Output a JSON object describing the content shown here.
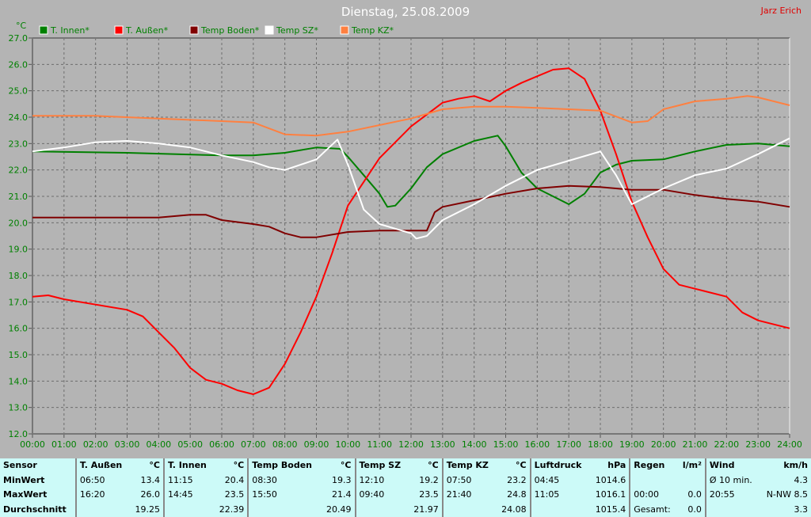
{
  "header": {
    "title": "Dienstag, 25.08.2009",
    "author": "Jarz Erich"
  },
  "chart_data": {
    "type": "line",
    "title": "Dienstag, 25.08.2009",
    "ylabel": "°C",
    "ylim": [
      12.0,
      27.0
    ],
    "yticks": [
      "12.0",
      "13.0",
      "14.0",
      "15.0",
      "16.0",
      "17.0",
      "18.0",
      "19.0",
      "20.0",
      "21.0",
      "22.0",
      "23.0",
      "24.0",
      "25.0",
      "26.0",
      "27.0"
    ],
    "xticks": [
      "00:00",
      "01:00",
      "02:00",
      "03:00",
      "04:00",
      "05:00",
      "06:00",
      "07:00",
      "08:00",
      "09:00",
      "10:00",
      "11:00",
      "12:00",
      "13:00",
      "14:00",
      "15:00",
      "16:00",
      "17:00",
      "18:00",
      "19:00",
      "20:00",
      "21:00",
      "22:00",
      "23:00",
      "24:00"
    ],
    "grid": true,
    "legend_position": "top",
    "series": [
      {
        "name": "T. Innen*",
        "color": "#008000",
        "points": [
          [
            "00:00",
            22.7
          ],
          [
            "03:00",
            22.65
          ],
          [
            "06:00",
            22.55
          ],
          [
            "07:00",
            22.55
          ],
          [
            "08:00",
            22.65
          ],
          [
            "09:00",
            22.85
          ],
          [
            "09:45",
            22.8
          ],
          [
            "10:00",
            22.5
          ],
          [
            "10:30",
            21.8
          ],
          [
            "11:00",
            21.1
          ],
          [
            "11:15",
            20.6
          ],
          [
            "11:30",
            20.65
          ],
          [
            "12:00",
            21.3
          ],
          [
            "12:30",
            22.1
          ],
          [
            "13:00",
            22.6
          ],
          [
            "14:00",
            23.1
          ],
          [
            "14:45",
            23.3
          ],
          [
            "15:00",
            22.9
          ],
          [
            "15:30",
            21.9
          ],
          [
            "16:00",
            21.3
          ],
          [
            "16:30",
            21.0
          ],
          [
            "17:00",
            20.7
          ],
          [
            "17:30",
            21.1
          ],
          [
            "18:00",
            21.9
          ],
          [
            "18:30",
            22.2
          ],
          [
            "19:00",
            22.35
          ],
          [
            "20:00",
            22.4
          ],
          [
            "21:00",
            22.7
          ],
          [
            "22:00",
            22.95
          ],
          [
            "23:00",
            23.0
          ],
          [
            "24:00",
            22.9
          ]
        ]
      },
      {
        "name": "T. Außen*",
        "color": "#ff0000",
        "points": [
          [
            "00:00",
            17.2
          ],
          [
            "00:30",
            17.25
          ],
          [
            "01:00",
            17.1
          ],
          [
            "02:00",
            16.9
          ],
          [
            "03:00",
            16.7
          ],
          [
            "03:30",
            16.45
          ],
          [
            "04:00",
            15.85
          ],
          [
            "04:30",
            15.25
          ],
          [
            "05:00",
            14.5
          ],
          [
            "05:30",
            14.05
          ],
          [
            "06:00",
            13.9
          ],
          [
            "06:30",
            13.65
          ],
          [
            "07:00",
            13.5
          ],
          [
            "07:30",
            13.75
          ],
          [
            "08:00",
            14.65
          ],
          [
            "08:30",
            15.85
          ],
          [
            "09:00",
            17.2
          ],
          [
            "09:30",
            18.85
          ],
          [
            "10:00",
            20.65
          ],
          [
            "10:30",
            21.55
          ],
          [
            "11:00",
            22.45
          ],
          [
            "11:30",
            23.05
          ],
          [
            "12:00",
            23.65
          ],
          [
            "12:30",
            24.1
          ],
          [
            "13:00",
            24.55
          ],
          [
            "13:30",
            24.7
          ],
          [
            "14:00",
            24.8
          ],
          [
            "14:30",
            24.6
          ],
          [
            "15:00",
            25.0
          ],
          [
            "15:30",
            25.3
          ],
          [
            "16:00",
            25.55
          ],
          [
            "16:30",
            25.8
          ],
          [
            "17:00",
            25.85
          ],
          [
            "17:30",
            25.45
          ],
          [
            "18:00",
            24.25
          ],
          [
            "18:30",
            22.6
          ],
          [
            "19:00",
            20.8
          ],
          [
            "19:30",
            19.45
          ],
          [
            "20:00",
            18.25
          ],
          [
            "20:30",
            17.65
          ],
          [
            "21:00",
            17.5
          ],
          [
            "22:00",
            17.2
          ],
          [
            "22:30",
            16.6
          ],
          [
            "23:00",
            16.3
          ],
          [
            "24:00",
            16.0
          ]
        ]
      },
      {
        "name": "Temp Boden*",
        "color": "#800000",
        "points": [
          [
            "00:00",
            20.2
          ],
          [
            "04:00",
            20.2
          ],
          [
            "05:00",
            20.3
          ],
          [
            "05:30",
            20.3
          ],
          [
            "06:00",
            20.1
          ],
          [
            "07:00",
            19.95
          ],
          [
            "07:30",
            19.85
          ],
          [
            "08:00",
            19.6
          ],
          [
            "08:30",
            19.45
          ],
          [
            "09:00",
            19.45
          ],
          [
            "10:00",
            19.65
          ],
          [
            "11:00",
            19.7
          ],
          [
            "12:30",
            19.7
          ],
          [
            "12:45",
            20.4
          ],
          [
            "13:00",
            20.6
          ],
          [
            "14:00",
            20.85
          ],
          [
            "15:00",
            21.1
          ],
          [
            "16:00",
            21.3
          ],
          [
            "17:00",
            21.4
          ],
          [
            "18:00",
            21.35
          ],
          [
            "19:00",
            21.25
          ],
          [
            "20:00",
            21.25
          ],
          [
            "21:00",
            21.05
          ],
          [
            "22:00",
            20.9
          ],
          [
            "23:00",
            20.8
          ],
          [
            "24:00",
            20.6
          ]
        ]
      },
      {
        "name": "Temp SZ*",
        "color": "#ffffff",
        "points": [
          [
            "00:00",
            22.7
          ],
          [
            "01:00",
            22.85
          ],
          [
            "02:00",
            23.05
          ],
          [
            "03:00",
            23.1
          ],
          [
            "04:00",
            23.0
          ],
          [
            "05:00",
            22.85
          ],
          [
            "06:00",
            22.55
          ],
          [
            "07:00",
            22.3
          ],
          [
            "07:30",
            22.1
          ],
          [
            "08:00",
            22.0
          ],
          [
            "09:00",
            22.4
          ],
          [
            "09:40",
            23.15
          ],
          [
            "10:00",
            22.2
          ],
          [
            "10:30",
            20.5
          ],
          [
            "11:00",
            19.95
          ],
          [
            "12:00",
            19.6
          ],
          [
            "12:10",
            19.4
          ],
          [
            "12:30",
            19.5
          ],
          [
            "13:00",
            20.1
          ],
          [
            "14:00",
            20.7
          ],
          [
            "15:00",
            21.4
          ],
          [
            "16:00",
            22.0
          ],
          [
            "17:00",
            22.35
          ],
          [
            "18:00",
            22.7
          ],
          [
            "18:30",
            21.8
          ],
          [
            "19:00",
            20.7
          ],
          [
            "20:00",
            21.3
          ],
          [
            "21:00",
            21.8
          ],
          [
            "22:00",
            22.05
          ],
          [
            "23:00",
            22.6
          ],
          [
            "24:00",
            23.2
          ]
        ]
      },
      {
        "name": "Temp KZ*",
        "color": "#ff8040",
        "points": [
          [
            "00:00",
            24.05
          ],
          [
            "02:00",
            24.05
          ],
          [
            "04:00",
            23.95
          ],
          [
            "06:00",
            23.85
          ],
          [
            "07:00",
            23.8
          ],
          [
            "08:00",
            23.35
          ],
          [
            "09:00",
            23.3
          ],
          [
            "10:00",
            23.45
          ],
          [
            "11:00",
            23.7
          ],
          [
            "12:00",
            23.95
          ],
          [
            "13:00",
            24.3
          ],
          [
            "14:00",
            24.4
          ],
          [
            "15:00",
            24.4
          ],
          [
            "16:00",
            24.35
          ],
          [
            "17:00",
            24.3
          ],
          [
            "18:00",
            24.25
          ],
          [
            "19:00",
            23.8
          ],
          [
            "19:30",
            23.85
          ],
          [
            "20:00",
            24.3
          ],
          [
            "21:00",
            24.6
          ],
          [
            "22:00",
            24.7
          ],
          [
            "22:40",
            24.8
          ],
          [
            "23:00",
            24.75
          ],
          [
            "24:00",
            24.45
          ]
        ]
      }
    ]
  },
  "stats": {
    "header": [
      "Sensor",
      "T. Außen",
      "°C",
      "T. Innen",
      "°C",
      "Temp Boden",
      "°C",
      "Temp SZ",
      "°C",
      "Temp KZ",
      "°C",
      "Luftdruck",
      "hPa",
      "Regen",
      "l/m²",
      "Wind",
      "km/h"
    ],
    "rows": [
      [
        "MinWert",
        "06:50",
        "13.4",
        "11:15",
        "20.4",
        "08:30",
        "19.3",
        "12:10",
        "19.2",
        "07:50",
        "23.2",
        "04:45",
        "1014.6",
        "",
        "",
        "Ø 10 min.",
        "4.3"
      ],
      [
        "MaxWert",
        "16:20",
        "26.0",
        "14:45",
        "23.5",
        "15:50",
        "21.4",
        "09:40",
        "23.5",
        "21:40",
        "24.8",
        "11:05",
        "1016.1",
        "00:00",
        "0.0",
        "20:55",
        "N-NW 8.5"
      ],
      [
        "Durchschnitt",
        "",
        "19.25",
        "",
        "22.39",
        "",
        "20.49",
        "",
        "21.97",
        "",
        "24.08",
        "",
        "1015.4",
        "Gesamt:",
        "0.0",
        "",
        "3.3"
      ]
    ]
  }
}
